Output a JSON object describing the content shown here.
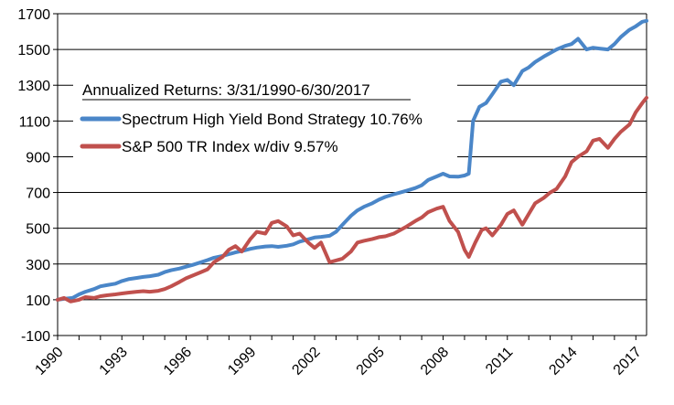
{
  "chart_data": {
    "type": "line",
    "title": "",
    "xlabel": "",
    "ylabel": "",
    "ylim": [
      -100,
      1700
    ],
    "xlim": [
      1990,
      2017.5
    ],
    "yticks": [
      -100,
      100,
      300,
      500,
      700,
      900,
      1100,
      1300,
      1500,
      1700
    ],
    "xticks": [
      "1990",
      "1993",
      "1996",
      "1999",
      "2002",
      "2005",
      "2008",
      "2011",
      "2014",
      "2017"
    ],
    "grid": "horizontal",
    "legend": {
      "heading": "Annualized Returns: 3/31/1990-6/30/2017",
      "placement": "top-left"
    },
    "series": [
      {
        "name": "Spectrum High Yield Bond Strategy 10.76%",
        "color": "#4a86c8",
        "x": [
          1990.0,
          1990.3,
          1990.7,
          1991.0,
          1991.3,
          1991.7,
          1992.0,
          1992.3,
          1992.7,
          1993.0,
          1993.3,
          1993.7,
          1994.0,
          1994.3,
          1994.7,
          1995.0,
          1995.3,
          1995.7,
          1996.0,
          1996.3,
          1996.7,
          1997.0,
          1997.3,
          1997.7,
          1998.0,
          1998.3,
          1998.7,
          1999.0,
          1999.3,
          1999.7,
          2000.0,
          2000.3,
          2000.7,
          2001.0,
          2001.3,
          2001.7,
          2002.0,
          2002.3,
          2002.7,
          2003.0,
          2003.3,
          2003.7,
          2004.0,
          2004.3,
          2004.7,
          2005.0,
          2005.3,
          2005.7,
          2006.0,
          2006.3,
          2006.7,
          2007.0,
          2007.3,
          2007.7,
          2008.0,
          2008.3,
          2008.7,
          2009.0,
          2009.2,
          2009.4,
          2009.7,
          2010.0,
          2010.3,
          2010.7,
          2011.0,
          2011.3,
          2011.7,
          2012.0,
          2012.3,
          2012.7,
          2013.0,
          2013.3,
          2013.7,
          2014.0,
          2014.3,
          2014.7,
          2015.0,
          2015.3,
          2015.7,
          2016.0,
          2016.3,
          2016.7,
          2017.0,
          2017.3,
          2017.5
        ],
        "values": [
          100,
          105,
          110,
          130,
          145,
          160,
          175,
          182,
          190,
          205,
          215,
          222,
          228,
          232,
          240,
          255,
          265,
          275,
          285,
          295,
          310,
          322,
          335,
          345,
          355,
          365,
          375,
          385,
          392,
          398,
          400,
          396,
          402,
          410,
          425,
          438,
          448,
          452,
          458,
          480,
          520,
          570,
          600,
          620,
          640,
          660,
          675,
          690,
          700,
          710,
          725,
          740,
          770,
          790,
          805,
          790,
          788,
          795,
          805,
          1100,
          1180,
          1200,
          1250,
          1320,
          1330,
          1300,
          1380,
          1400,
          1430,
          1460,
          1480,
          1500,
          1520,
          1530,
          1560,
          1500,
          1510,
          1505,
          1500,
          1530,
          1570,
          1610,
          1630,
          1655,
          1660
        ]
      },
      {
        "name": "S&P 500 TR Index w/div 9.57%",
        "color": "#c0504d",
        "x": [
          1990.0,
          1990.3,
          1990.6,
          1991.0,
          1991.3,
          1991.7,
          1992.0,
          1992.3,
          1992.7,
          1993.0,
          1993.3,
          1993.7,
          1994.0,
          1994.3,
          1994.7,
          1995.0,
          1995.3,
          1995.7,
          1996.0,
          1996.3,
          1996.7,
          1997.0,
          1997.3,
          1997.7,
          1998.0,
          1998.3,
          1998.6,
          1999.0,
          1999.3,
          1999.7,
          2000.0,
          2000.3,
          2000.7,
          2001.0,
          2001.3,
          2001.7,
          2002.0,
          2002.3,
          2002.7,
          2003.0,
          2003.3,
          2003.7,
          2004.0,
          2004.3,
          2004.7,
          2005.0,
          2005.3,
          2005.7,
          2006.0,
          2006.3,
          2006.7,
          2007.0,
          2007.3,
          2007.7,
          2008.0,
          2008.3,
          2008.7,
          2009.0,
          2009.2,
          2009.5,
          2009.8,
          2010.0,
          2010.3,
          2010.7,
          2011.0,
          2011.3,
          2011.7,
          2012.0,
          2012.3,
          2012.7,
          2013.0,
          2013.3,
          2013.7,
          2014.0,
          2014.3,
          2014.7,
          2015.0,
          2015.3,
          2015.7,
          2016.0,
          2016.3,
          2016.7,
          2017.0,
          2017.3,
          2017.5
        ],
        "values": [
          100,
          110,
          90,
          100,
          115,
          110,
          120,
          125,
          130,
          135,
          140,
          145,
          148,
          145,
          150,
          160,
          175,
          200,
          220,
          235,
          255,
          270,
          310,
          340,
          380,
          400,
          370,
          440,
          480,
          470,
          530,
          540,
          510,
          460,
          470,
          420,
          390,
          420,
          310,
          320,
          330,
          370,
          420,
          430,
          440,
          450,
          455,
          470,
          490,
          510,
          540,
          560,
          590,
          610,
          620,
          540,
          480,
          380,
          340,
          420,
          490,
          500,
          460,
          520,
          580,
          600,
          520,
          580,
          640,
          670,
          700,
          720,
          790,
          870,
          900,
          930,
          990,
          1000,
          950,
          1000,
          1040,
          1080,
          1150,
          1200,
          1230
        ]
      }
    ]
  }
}
